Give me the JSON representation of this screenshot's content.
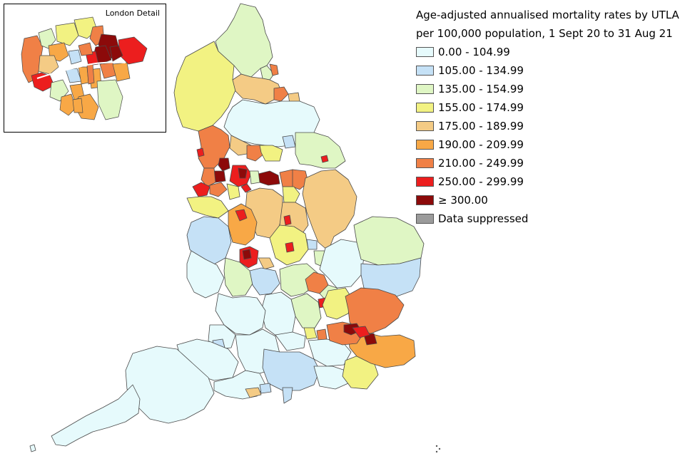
{
  "inset": {
    "title": "London Detail"
  },
  "legend": {
    "title_line1": "Age-adjusted annualised mortality rates by UTLA",
    "title_line2": "per 100,000 population, 1 Sept 20 to 31 Aug 21",
    "items": [
      {
        "label": "0.00 - 104.99",
        "color": "#e6fafc"
      },
      {
        "label": "105.00 - 134.99",
        "color": "#c5e1f6"
      },
      {
        "label": "135.00 - 154.99",
        "color": "#dff6c4"
      },
      {
        "label": "155.00 - 174.99",
        "color": "#f2f282"
      },
      {
        "label": "175.00 - 189.99",
        "color": "#f4cb85"
      },
      {
        "label": "190.00 - 209.99",
        "color": "#f8a846"
      },
      {
        "label": "210.00 - 249.99",
        "color": "#f08046"
      },
      {
        "label": "250.00 - 299.99",
        "color": "#ec1e1e"
      },
      {
        "label": "≥ 300.00",
        "color": "#8c0a0a"
      },
      {
        "label": "Data suppressed",
        "color": "#9b9b9b"
      }
    ]
  }
}
